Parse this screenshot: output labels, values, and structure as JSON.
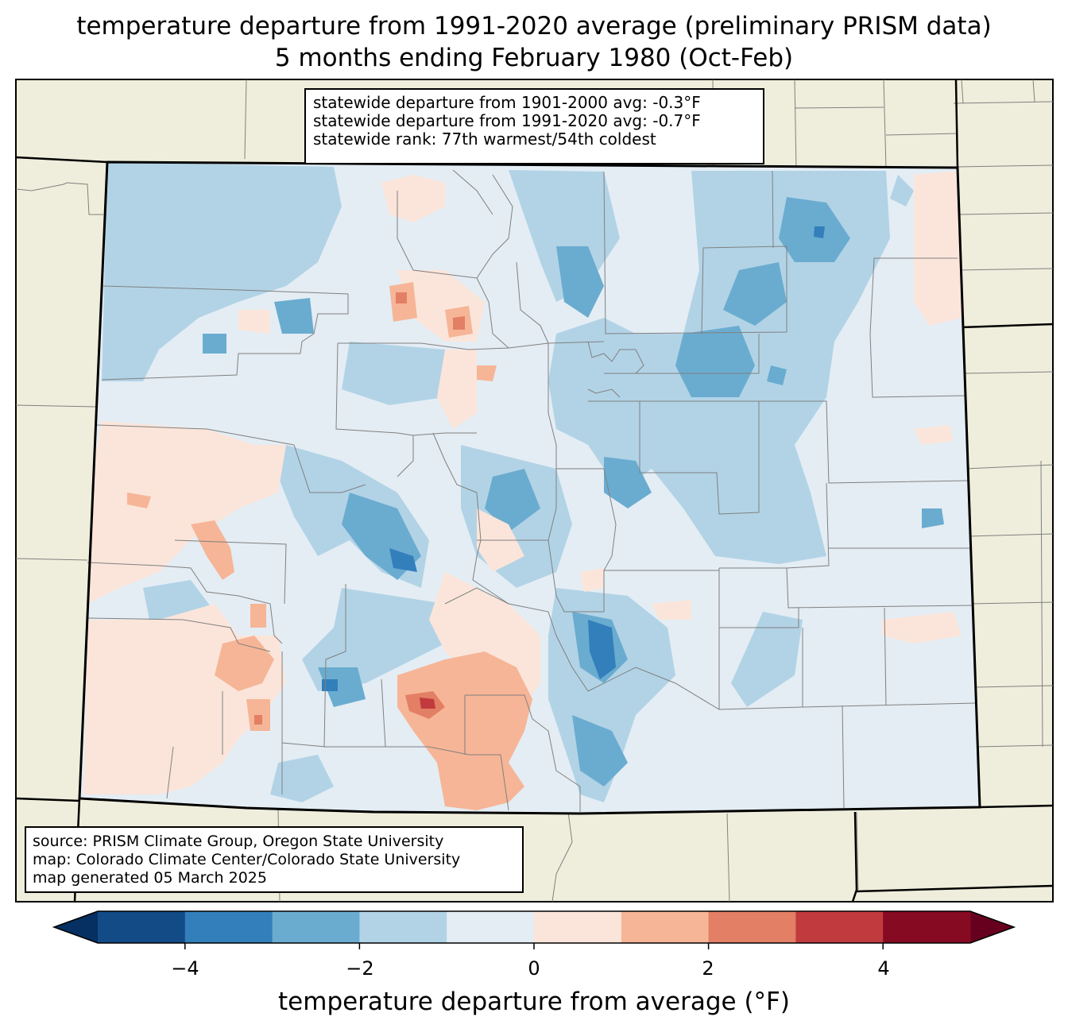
{
  "title_line1": "temperature departure from 1991-2020 average (preliminary PRISM data)",
  "title_line2": "5 months ending February 1980 (Oct-Feb)",
  "stats": {
    "line1": "statewide departure from 1901-2000 avg: -0.3°F",
    "line2": "statewide departure from 1991-2020 avg: -0.7°F",
    "line3": "statewide rank: 77th warmest/54th coldest"
  },
  "credits": {
    "line1": "source: PRISM Climate Group, Oregon State University",
    "line2": "map: Colorado Climate Center/Colorado State University",
    "line3": "map generated 05 March 2025"
  },
  "colorbar": {
    "label": "temperature departure from average (°F)",
    "ticks": [
      "−4",
      "−2",
      "0",
      "2",
      "4"
    ],
    "tick_values": [
      -4,
      -2,
      0,
      2,
      4
    ],
    "range": [
      -5,
      5
    ],
    "bins": [
      -5,
      -4,
      -3,
      -2,
      -1,
      0,
      1,
      2,
      3,
      4,
      5
    ],
    "colors": [
      "#134b87",
      "#327fbb",
      "#6aacd0",
      "#b2d3e6",
      "#e4edf4",
      "#fbe5da",
      "#f6b597",
      "#e27f64",
      "#c13a3e",
      "#870a23"
    ],
    "under_color": "#053061",
    "over_color": "#67001f"
  },
  "colors": {
    "land": "#efeedc",
    "background": "#ffffff"
  }
}
